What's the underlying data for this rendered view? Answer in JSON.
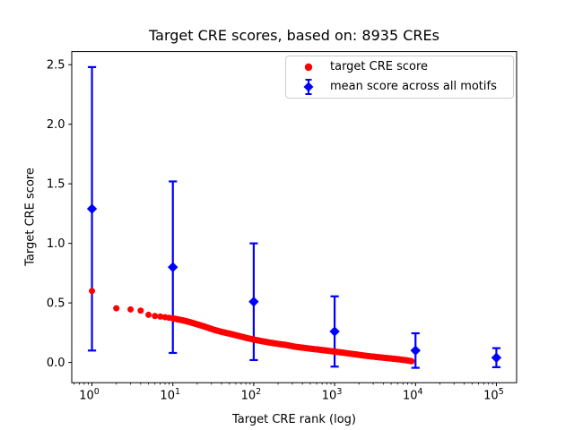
{
  "chart_data": {
    "type": "scatter",
    "title": "Target CRE scores, based on: 8935 CREs",
    "xlabel": "Target CRE rank (log)",
    "ylabel": "Target CRE score",
    "x_scale": "log",
    "grid": false,
    "xlim_log10": [
      -0.25,
      5.25
    ],
    "ylim": [
      -0.17,
      2.61
    ],
    "x_tick_base": "10",
    "x_tick_exponents": [
      "0",
      "1",
      "2",
      "3",
      "4",
      "5"
    ],
    "x_tick_labels": [
      "10⁰",
      "10¹",
      "10²",
      "10³",
      "10⁴",
      "10⁵"
    ],
    "y_ticks": [
      0.0,
      0.5,
      1.0,
      1.5,
      2.0,
      2.5
    ],
    "y_tick_labels": [
      "0.0",
      "0.5",
      "1.0",
      "1.5",
      "2.0",
      "2.5"
    ],
    "legend_position": "upper right",
    "axis_color": "#000000",
    "series": [
      {
        "name": "target CRE score",
        "type": "scatter",
        "marker": "circle",
        "color": "#ff0000",
        "n_points": 8935,
        "rank_range": [
          1,
          8935
        ],
        "anchors": [
          [
            1,
            0.6
          ],
          [
            2,
            0.455
          ],
          [
            3,
            0.445
          ],
          [
            4,
            0.435
          ],
          [
            5,
            0.4
          ],
          [
            6,
            0.39
          ],
          [
            7,
            0.385
          ],
          [
            8,
            0.38
          ],
          [
            9,
            0.375
          ],
          [
            10,
            0.37
          ],
          [
            13,
            0.355
          ],
          [
            16,
            0.34
          ],
          [
            20,
            0.32
          ],
          [
            25,
            0.3
          ],
          [
            32,
            0.275
          ],
          [
            40,
            0.257
          ],
          [
            50,
            0.242
          ],
          [
            63,
            0.225
          ],
          [
            80,
            0.207
          ],
          [
            100,
            0.192
          ],
          [
            130,
            0.177
          ],
          [
            160,
            0.166
          ],
          [
            200,
            0.156
          ],
          [
            250,
            0.147
          ],
          [
            320,
            0.133
          ],
          [
            400,
            0.124
          ],
          [
            500,
            0.116
          ],
          [
            630,
            0.108
          ],
          [
            800,
            0.099
          ],
          [
            1000,
            0.091
          ],
          [
            1300,
            0.081
          ],
          [
            1600,
            0.073
          ],
          [
            2000,
            0.064
          ],
          [
            2500,
            0.055
          ],
          [
            3200,
            0.047
          ],
          [
            4000,
            0.04
          ],
          [
            5000,
            0.033
          ],
          [
            6300,
            0.026
          ],
          [
            8000,
            0.017
          ],
          [
            8935,
            0.01
          ]
        ]
      },
      {
        "name": "mean score across all motifs",
        "type": "errorbar",
        "marker": "diamond",
        "color": "#0000ff",
        "x": [
          1,
          10,
          100,
          1000,
          10000,
          100000
        ],
        "y": [
          1.29,
          0.8,
          0.51,
          0.26,
          0.1,
          0.04
        ],
        "yerr": [
          1.19,
          0.72,
          0.49,
          0.295,
          0.145,
          0.08
        ]
      }
    ]
  }
}
